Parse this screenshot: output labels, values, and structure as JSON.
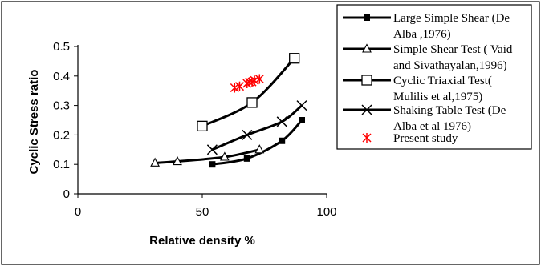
{
  "chart_data": {
    "type": "line",
    "xlabel": "Relative density %",
    "ylabel": "Cyclic Stress ratio",
    "xlim": [
      0,
      100
    ],
    "ylim": [
      0,
      0.5
    ],
    "x_ticks": [
      "0",
      "50",
      "100"
    ],
    "y_ticks": [
      "0",
      "0.1",
      "0.2",
      "0.3",
      "0.4",
      "0.5"
    ],
    "grid": false,
    "legend_position": "top-right",
    "series": [
      {
        "name": "Large Simple Shear (De Alba ,1976)",
        "legend_lines": [
          "Large Simple Shear (De",
          "Alba ,1976)"
        ],
        "marker": "filled-square",
        "color": "#000000",
        "x": [
          54,
          68,
          82,
          90
        ],
        "y": [
          0.1,
          0.12,
          0.18,
          0.25
        ]
      },
      {
        "name": "Simple Shear Test ( Vaid and Sivathayalan,1996)",
        "legend_lines": [
          "Simple Shear Test ( Vaid",
          "and Sivathayalan,1996)"
        ],
        "marker": "open-triangle",
        "color": "#000000",
        "x": [
          31,
          40,
          59,
          73
        ],
        "y": [
          0.105,
          0.11,
          0.125,
          0.15
        ]
      },
      {
        "name": "Cyclic Triaxial Test( Mulilis et al,1975)",
        "legend_lines": [
          "Cyclic Triaxial Test(",
          "Mulilis et al,1975)"
        ],
        "marker": "open-square",
        "color": "#000000",
        "x": [
          50,
          70,
          87
        ],
        "y": [
          0.23,
          0.31,
          0.46
        ]
      },
      {
        "name": "Shaking Table Test (De Alba et al 1976)",
        "legend_lines": [
          "Shaking Table Test (De",
          "Alba  et al 1976)"
        ],
        "marker": "x",
        "color": "#000000",
        "x": [
          54,
          68,
          82,
          90
        ],
        "y": [
          0.15,
          0.2,
          0.245,
          0.3
        ]
      },
      {
        "name": "Present study",
        "legend_lines": [
          "Present study"
        ],
        "marker": "asterisk",
        "color": "#ff0000",
        "no_line": true,
        "x": [
          63,
          65,
          68,
          69,
          70,
          71,
          73
        ],
        "y": [
          0.36,
          0.365,
          0.375,
          0.38,
          0.38,
          0.385,
          0.39
        ]
      }
    ]
  }
}
